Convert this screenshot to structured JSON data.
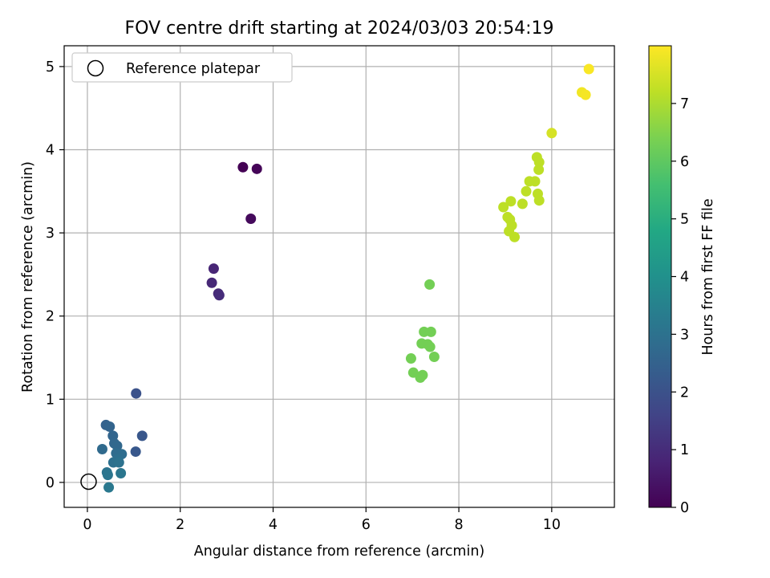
{
  "chart_data": {
    "type": "scatter",
    "title": "FOV centre drift starting at 2024/03/03 20:54:19",
    "xlabel": "Angular distance from reference (arcmin)",
    "ylabel": "Rotation from reference (arcmin)",
    "xlim": [
      -0.5,
      11.35
    ],
    "ylim": [
      -0.3,
      5.25
    ],
    "x_ticks": [
      0,
      2,
      4,
      6,
      8,
      10
    ],
    "y_ticks": [
      0,
      1,
      2,
      3,
      4,
      5
    ],
    "grid": true,
    "legend": {
      "placement": "top-left",
      "entries": [
        "Reference platepar"
      ]
    },
    "reference_point": {
      "x": 0,
      "y": 0,
      "label": "Reference platepar"
    },
    "colorbar": {
      "label": "Hours from first FF file",
      "range": [
        0,
        8
      ],
      "ticks": [
        0,
        1,
        2,
        3,
        4,
        5,
        6,
        7
      ],
      "colormap": "viridis"
    },
    "points": [
      {
        "x": 3.35,
        "y": 3.79,
        "c": 0.0
      },
      {
        "x": 3.65,
        "y": 3.77,
        "c": 0.1
      },
      {
        "x": 3.52,
        "y": 3.17,
        "c": 0.2
      },
      {
        "x": 2.72,
        "y": 2.57,
        "c": 0.85
      },
      {
        "x": 2.68,
        "y": 2.4,
        "c": 0.9
      },
      {
        "x": 2.82,
        "y": 2.27,
        "c": 0.95
      },
      {
        "x": 2.84,
        "y": 2.25,
        "c": 1.0
      },
      {
        "x": 1.05,
        "y": 1.07,
        "c": 2.0
      },
      {
        "x": 1.18,
        "y": 0.56,
        "c": 2.15
      },
      {
        "x": 1.04,
        "y": 0.37,
        "c": 2.2
      },
      {
        "x": 0.4,
        "y": 0.69,
        "c": 2.5
      },
      {
        "x": 0.48,
        "y": 0.67,
        "c": 2.55
      },
      {
        "x": 0.55,
        "y": 0.56,
        "c": 2.6
      },
      {
        "x": 0.58,
        "y": 0.47,
        "c": 2.65
      },
      {
        "x": 0.64,
        "y": 0.44,
        "c": 2.7
      },
      {
        "x": 0.32,
        "y": 0.4,
        "c": 2.75
      },
      {
        "x": 0.62,
        "y": 0.35,
        "c": 2.8
      },
      {
        "x": 0.74,
        "y": 0.34,
        "c": 2.85
      },
      {
        "x": 0.66,
        "y": 0.28,
        "c": 2.9
      },
      {
        "x": 0.56,
        "y": 0.24,
        "c": 2.95
      },
      {
        "x": 0.68,
        "y": 0.24,
        "c": 3.0
      },
      {
        "x": 0.42,
        "y": 0.12,
        "c": 3.05
      },
      {
        "x": 0.44,
        "y": 0.09,
        "c": 3.1
      },
      {
        "x": 0.72,
        "y": 0.11,
        "c": 3.15
      },
      {
        "x": 0.46,
        "y": -0.06,
        "c": 3.2
      },
      {
        "x": 7.37,
        "y": 2.38,
        "c": 6.3
      },
      {
        "x": 7.25,
        "y": 1.81,
        "c": 6.3
      },
      {
        "x": 7.4,
        "y": 1.81,
        "c": 6.3
      },
      {
        "x": 7.2,
        "y": 1.67,
        "c": 6.3
      },
      {
        "x": 7.33,
        "y": 1.66,
        "c": 6.3
      },
      {
        "x": 7.38,
        "y": 1.63,
        "c": 6.3
      },
      {
        "x": 6.97,
        "y": 1.49,
        "c": 6.3
      },
      {
        "x": 7.47,
        "y": 1.51,
        "c": 6.3
      },
      {
        "x": 7.02,
        "y": 1.32,
        "c": 6.3
      },
      {
        "x": 7.22,
        "y": 1.29,
        "c": 6.3
      },
      {
        "x": 7.17,
        "y": 1.26,
        "c": 6.3
      },
      {
        "x": 9.68,
        "y": 3.91,
        "c": 7.2
      },
      {
        "x": 9.73,
        "y": 3.85,
        "c": 7.2
      },
      {
        "x": 9.72,
        "y": 3.76,
        "c": 7.2
      },
      {
        "x": 9.52,
        "y": 3.62,
        "c": 7.2
      },
      {
        "x": 9.64,
        "y": 3.62,
        "c": 7.2
      },
      {
        "x": 9.45,
        "y": 3.5,
        "c": 7.2
      },
      {
        "x": 9.7,
        "y": 3.47,
        "c": 7.2
      },
      {
        "x": 9.12,
        "y": 3.38,
        "c": 7.2
      },
      {
        "x": 9.73,
        "y": 3.39,
        "c": 7.2
      },
      {
        "x": 9.37,
        "y": 3.35,
        "c": 7.2
      },
      {
        "x": 8.96,
        "y": 3.31,
        "c": 7.2
      },
      {
        "x": 9.05,
        "y": 3.19,
        "c": 7.2
      },
      {
        "x": 9.1,
        "y": 3.16,
        "c": 7.2
      },
      {
        "x": 9.14,
        "y": 3.09,
        "c": 7.2
      },
      {
        "x": 9.08,
        "y": 3.02,
        "c": 7.2
      },
      {
        "x": 9.2,
        "y": 2.95,
        "c": 7.2
      },
      {
        "x": 10.0,
        "y": 4.2,
        "c": 7.5
      },
      {
        "x": 10.65,
        "y": 4.69,
        "c": 7.85
      },
      {
        "x": 10.73,
        "y": 4.66,
        "c": 7.9
      },
      {
        "x": 10.8,
        "y": 4.97,
        "c": 7.95
      }
    ]
  }
}
